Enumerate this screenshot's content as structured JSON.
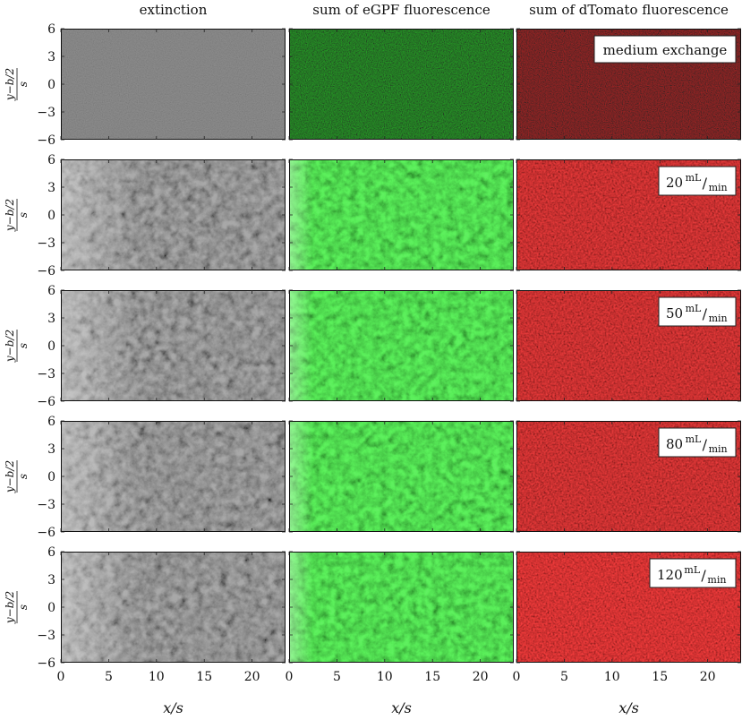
{
  "columns": [
    {
      "title": "extinction",
      "key": "extinction"
    },
    {
      "title": "sum of eGPF fluorescence",
      "key": "egfp"
    },
    {
      "title": "sum of dTomato fluorescence",
      "key": "dtomato"
    }
  ],
  "rows": [
    {
      "label": "medium exchange",
      "flow_value": "",
      "flow_unit_num": "",
      "flow_unit_den": ""
    },
    {
      "label": "",
      "flow_value": "20",
      "flow_unit_num": "mL",
      "flow_unit_den": "min"
    },
    {
      "label": "",
      "flow_value": "50",
      "flow_unit_num": "mL",
      "flow_unit_den": "min"
    },
    {
      "label": "",
      "flow_value": "80",
      "flow_unit_num": "mL",
      "flow_unit_den": "min"
    },
    {
      "label": "",
      "flow_value": "120",
      "flow_unit_num": "mL",
      "flow_unit_den": "min"
    }
  ],
  "y_axis": {
    "label_numerator": "y−b/2",
    "label_denominator": "s",
    "ticks": [
      "6",
      "3",
      "0",
      "−3",
      "−6"
    ],
    "range": [
      -6,
      6
    ]
  },
  "x_axis": {
    "label": "x/s",
    "ticks": [
      "0",
      "5",
      "10",
      "15",
      "20"
    ],
    "range": [
      0,
      23.5
    ]
  },
  "colors": {
    "extinction": "#9a9a9a",
    "egfp": "#33c233",
    "dtomato": "#c41414"
  }
}
